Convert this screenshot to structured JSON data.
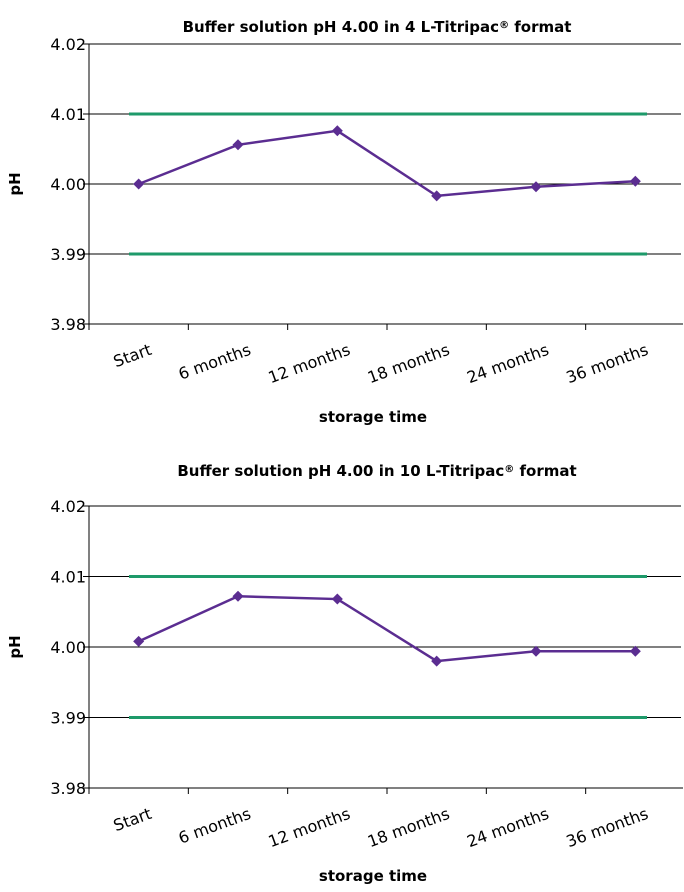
{
  "chart_data": [
    {
      "type": "line",
      "title": {
        "pre": "Buffer solution pH 4.00 in 4 L-Titripac",
        "mark": "®",
        "post": " format"
      },
      "xlabel": "storage time",
      "ylabel": "pH",
      "categories": [
        "Start",
        "6 months",
        "12 months",
        "18 months",
        "24 months",
        "36 months"
      ],
      "y_ticks": [
        "3.98",
        "3.99",
        "4.00",
        "4.01",
        "4.02"
      ],
      "ylim": [
        3.98,
        4.02
      ],
      "grid": true,
      "series": [
        {
          "values": [
            4.0,
            4.0056,
            4.0076,
            3.9983,
            3.9996,
            4.0004
          ],
          "color": "#5b2d91",
          "marker": "diamond"
        }
      ],
      "reference_lines": [
        {
          "y": 4.01,
          "color": "#1e9a6a"
        },
        {
          "y": 3.99,
          "color": "#1e9a6a"
        }
      ]
    },
    {
      "type": "line",
      "title": {
        "pre": "Buffer solution pH 4.00 in 10 L-Titripac",
        "mark": "®",
        "post": " format"
      },
      "xlabel": "storage time",
      "ylabel": "pH",
      "categories": [
        "Start",
        "6 months",
        "12 months",
        "18 months",
        "24 months",
        "36 months"
      ],
      "y_ticks": [
        "3.98",
        "3.99",
        "4.00",
        "4.01",
        "4.02"
      ],
      "ylim": [
        3.98,
        4.02
      ],
      "grid": true,
      "series": [
        {
          "values": [
            4.0008,
            4.0072,
            4.0068,
            3.998,
            3.9994,
            3.9994
          ],
          "color": "#5b2d91",
          "marker": "diamond"
        }
      ],
      "reference_lines": [
        {
          "y": 4.01,
          "color": "#1e9a6a"
        },
        {
          "y": 3.99,
          "color": "#1e9a6a"
        }
      ]
    }
  ]
}
